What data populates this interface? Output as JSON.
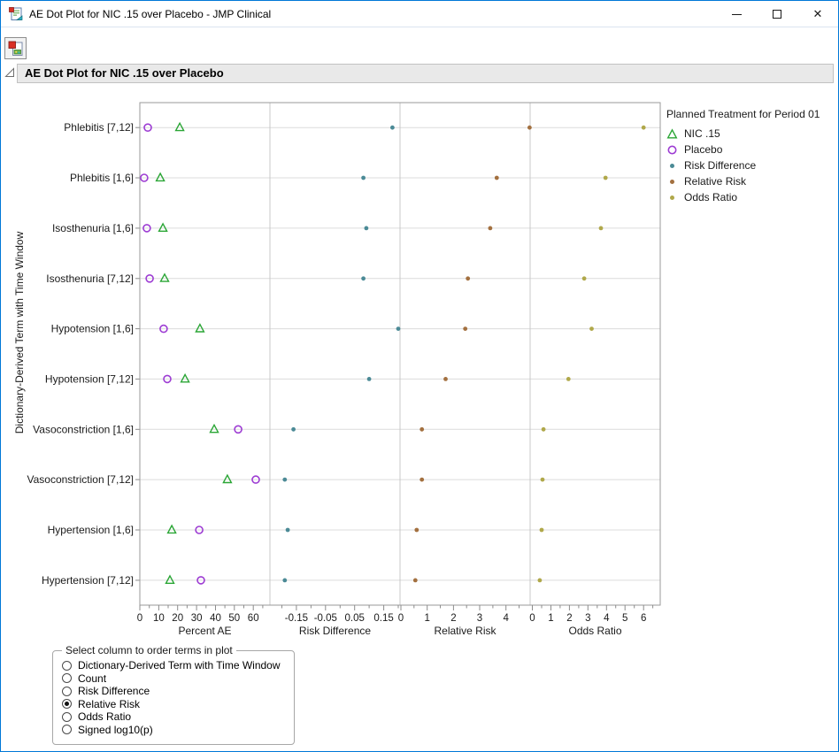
{
  "window": {
    "icon": "jmp-clinical-app-icon",
    "title": "AE Dot Plot for NIC .15 over Placebo - JMP Clinical",
    "controls": {
      "minimize": "minimize-icon",
      "maximize": "maximize-icon",
      "close": "✕"
    }
  },
  "toolbar": {
    "icon": "report-document-icon"
  },
  "section_header": {
    "title": "AE Dot Plot for NIC .15 over Placebo"
  },
  "legend": {
    "title": "Planned Treatment for Period 01",
    "items": [
      {
        "label": "NIC .15",
        "marker": "triangle",
        "color": "#2BA636"
      },
      {
        "label": "Placebo",
        "marker": "open-circle",
        "color": "#9D3CD3"
      },
      {
        "label": "Risk Difference",
        "marker": "dot",
        "color": "#4B8A96"
      },
      {
        "label": "Relative Risk",
        "marker": "dot",
        "color": "#A3703F"
      },
      {
        "label": "Odds Ratio",
        "marker": "dot",
        "color": "#B0A84A"
      }
    ]
  },
  "order_control": {
    "title": "Select column to order terms in plot",
    "options": [
      "Dictionary-Derived Term with Time Window",
      "Count",
      "Risk Difference",
      "Relative Risk",
      "Odds Ratio",
      "Signed log10(p)"
    ],
    "selected": "Relative Risk"
  },
  "chart_data": {
    "type": "scatter",
    "title": "AE Dot Plot for NIC .15 over Placebo",
    "ylabel": "Dictionary-Derived Term with Time Window",
    "grid": "horizontal-only",
    "legend_position": "right",
    "categories": [
      "Phlebitis [7,12]",
      "Phlebitis [1,6]",
      "Isosthenuria [1,6]",
      "Isosthenuria [7,12]",
      "Hypotension [1,6]",
      "Hypotension [7,12]",
      "Vasoconstriction [1,6]",
      "Vasoconstriction [7,12]",
      "Hypertension [1,6]",
      "Hypertension [7,12]"
    ],
    "panels": [
      {
        "label": "Percent AE",
        "range": [
          0,
          68.8
        ],
        "major_ticks": [
          0,
          10,
          20,
          30,
          40,
          50,
          60
        ],
        "tick_labels": [
          "0",
          "10",
          "20",
          "30",
          "40",
          "50",
          "60"
        ],
        "minor_ticks": [
          5,
          15,
          25,
          35,
          45,
          55,
          65
        ]
      },
      {
        "label": "Risk Difference",
        "range": [
          -0.241,
          0.206
        ],
        "major_ticks": [
          -0.15,
          -0.05,
          0.05,
          0.15
        ],
        "tick_labels": [
          "-0.15",
          "-0.05",
          "0.05",
          "0.15"
        ],
        "minor_ticks": [
          -0.2,
          -0.1,
          0,
          0.1,
          0.2
        ]
      },
      {
        "label": "Relative Risk",
        "range": [
          -0.034,
          4.92
        ],
        "major_ticks": [
          0,
          1,
          2,
          3,
          4
        ],
        "tick_labels": [
          "0",
          "1",
          "2",
          "3",
          "4"
        ],
        "minor_ticks": [
          0.5,
          1.5,
          2.5,
          3.5,
          4.5
        ]
      },
      {
        "label": "Odds Ratio",
        "range": [
          -0.12,
          6.9
        ],
        "major_ticks": [
          0,
          1,
          2,
          3,
          4,
          5,
          6
        ],
        "tick_labels": [
          "0",
          "1",
          "2",
          "3",
          "4",
          "5",
          "6"
        ],
        "minor_ticks": [
          0.5,
          1.5,
          2.5,
          3.5,
          4.5,
          5.5,
          6.5
        ]
      }
    ],
    "series": [
      {
        "name": "NIC .15",
        "panel": 0,
        "marker": "triangle",
        "color": "#2BA636",
        "values": [
          21.1,
          10.8,
          12.2,
          13.1,
          31.8,
          23.9,
          39.3,
          46.3,
          16.9,
          15.9
        ]
      },
      {
        "name": "Placebo",
        "panel": 0,
        "marker": "open-circle",
        "color": "#9D3CD3",
        "values": [
          4.2,
          2.3,
          3.7,
          5.2,
          12.6,
          14.5,
          52.0,
          61.3,
          31.4,
          32.3
        ]
      },
      {
        "name": "Risk Difference",
        "panel": 1,
        "marker": "dot",
        "color": "#4B8A96",
        "values": [
          0.18,
          0.08,
          0.09,
          0.08,
          0.2,
          0.1,
          -0.16,
          -0.19,
          -0.18,
          -0.19
        ]
      },
      {
        "name": "Relative Risk",
        "panel": 2,
        "marker": "dot",
        "color": "#A3703F",
        "values": [
          4.9,
          3.65,
          3.4,
          2.55,
          2.45,
          1.7,
          0.8,
          0.8,
          0.6,
          0.55
        ]
      },
      {
        "name": "Odds Ratio",
        "panel": 3,
        "marker": "dot",
        "color": "#B0A84A",
        "values": [
          6.0,
          3.95,
          3.7,
          2.8,
          3.2,
          1.95,
          0.6,
          0.55,
          0.5,
          0.4
        ]
      }
    ]
  }
}
